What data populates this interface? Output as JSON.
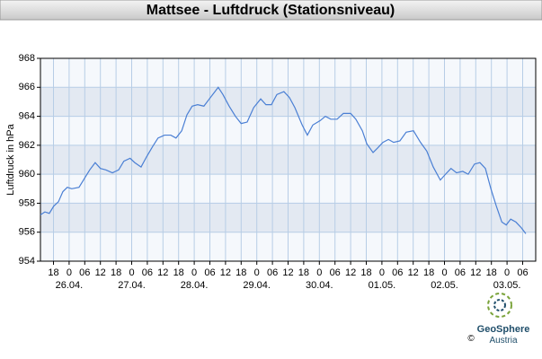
{
  "chart_data": {
    "type": "line",
    "title": "Mattsee - Luftdruck (Stationsniveau)",
    "y_label": "Luftdruck in hPa",
    "xlim": [
      -11,
      179
    ],
    "ylim": [
      954,
      968
    ],
    "yticks": [
      954,
      956,
      958,
      960,
      962,
      964,
      966,
      968
    ],
    "xticks": [
      {
        "value": -6,
        "label": "18"
      },
      0,
      {
        "value": 6,
        "label": "06"
      },
      12,
      18,
      {
        "value": 24,
        "label": "0"
      },
      {
        "value": 30,
        "label": "06"
      },
      {
        "value": 36,
        "label": "12"
      },
      {
        "value": 42,
        "label": "18"
      },
      {
        "value": 48,
        "label": "0"
      },
      {
        "value": 54,
        "label": "06"
      },
      {
        "value": 60,
        "label": "12"
      },
      {
        "value": 66,
        "label": "18"
      },
      {
        "value": 72,
        "label": "0"
      },
      {
        "value": 78,
        "label": "06"
      },
      {
        "value": 84,
        "label": "12"
      },
      {
        "value": 90,
        "label": "18"
      },
      {
        "value": 96,
        "label": "0"
      },
      {
        "value": 102,
        "label": "06"
      },
      {
        "value": 108,
        "label": "12"
      },
      {
        "value": 114,
        "label": "18"
      },
      {
        "value": 120,
        "label": "0"
      },
      {
        "value": 126,
        "label": "06"
      },
      {
        "value": 132,
        "label": "12"
      },
      {
        "value": 138,
        "label": "18"
      },
      {
        "value": 144,
        "label": "0"
      },
      {
        "value": 150,
        "label": "06"
      },
      {
        "value": 156,
        "label": "12"
      },
      {
        "value": 162,
        "label": "18"
      },
      {
        "value": 168,
        "label": "0"
      },
      {
        "value": 174,
        "label": "06"
      }
    ],
    "date_ticks": [
      {
        "value": 0,
        "label": "26.04."
      },
      {
        "value": 24,
        "label": "27.04."
      },
      {
        "value": 48,
        "label": "28.04."
      },
      {
        "value": 72,
        "label": "29.04."
      },
      {
        "value": 96,
        "label": "30.04."
      },
      {
        "value": 120,
        "label": "01.05."
      },
      {
        "value": 144,
        "label": "02.05."
      },
      {
        "value": 168,
        "label": "03.05."
      }
    ],
    "grid": true,
    "series": [
      {
        "color": "#4a7fd4",
        "x": [
          -11,
          -9.3,
          -7.6,
          -5.9,
          -4.1,
          -2.4,
          -0.7,
          1,
          3.8,
          6.2,
          7.9,
          10,
          12,
          14.1,
          16.6,
          19,
          21,
          23.4,
          25.2,
          27.6,
          29.7,
          32,
          34.1,
          36.6,
          39,
          41,
          43.2,
          45.2,
          47.2,
          49.3,
          51.7,
          53.8,
          55.5,
          57.2,
          59,
          61.4,
          63.8,
          66,
          68.3,
          70.8,
          73.5,
          75.5,
          77.6,
          79.7,
          82.4,
          84.5,
          86.6,
          89.4,
          91.4,
          93.5,
          96.3,
          98.3,
          100.4,
          102.8,
          105.2,
          108,
          110,
          112.5,
          114.2,
          116.6,
          118.3,
          120.4,
          122.5,
          124.5,
          126.9,
          129.3,
          132.1,
          134.8,
          137.2,
          139.7,
          142.4,
          144.4,
          146.5,
          148.6,
          151,
          153.1,
          155.5,
          157.6,
          159.7,
          161.8,
          163.9,
          166,
          167.7,
          169.4,
          171.4,
          173.5,
          175.2
        ],
        "values": [
          957.2,
          957.4,
          957.3,
          957.8,
          958.1,
          958.8,
          959.1,
          959.0,
          959.1,
          959.8,
          960.3,
          960.8,
          960.4,
          960.3,
          960.1,
          960.3,
          960.9,
          961.1,
          960.8,
          960.5,
          961.2,
          961.9,
          962.5,
          962.7,
          962.7,
          962.5,
          963.0,
          964.1,
          964.7,
          964.8,
          964.7,
          965.2,
          965.6,
          966.0,
          965.5,
          964.7,
          964.0,
          963.5,
          963.6,
          964.6,
          965.2,
          964.8,
          964.8,
          965.5,
          965.7,
          965.3,
          964.6,
          963.4,
          962.7,
          963.4,
          963.7,
          964.0,
          963.8,
          963.8,
          964.2,
          964.2,
          963.8,
          963.0,
          962.1,
          961.5,
          961.8,
          962.2,
          962.4,
          962.2,
          962.3,
          962.9,
          963.0,
          962.2,
          961.6,
          960.5,
          959.6,
          960.0,
          960.4,
          960.1,
          960.2,
          960.0,
          960.7,
          960.8,
          960.4,
          959.0,
          957.8,
          956.7,
          956.5,
          956.9,
          956.7,
          956.3,
          955.9
        ]
      }
    ]
  },
  "logo": {
    "name": "GeoSphere",
    "country": "Austria",
    "copyright": "©"
  }
}
